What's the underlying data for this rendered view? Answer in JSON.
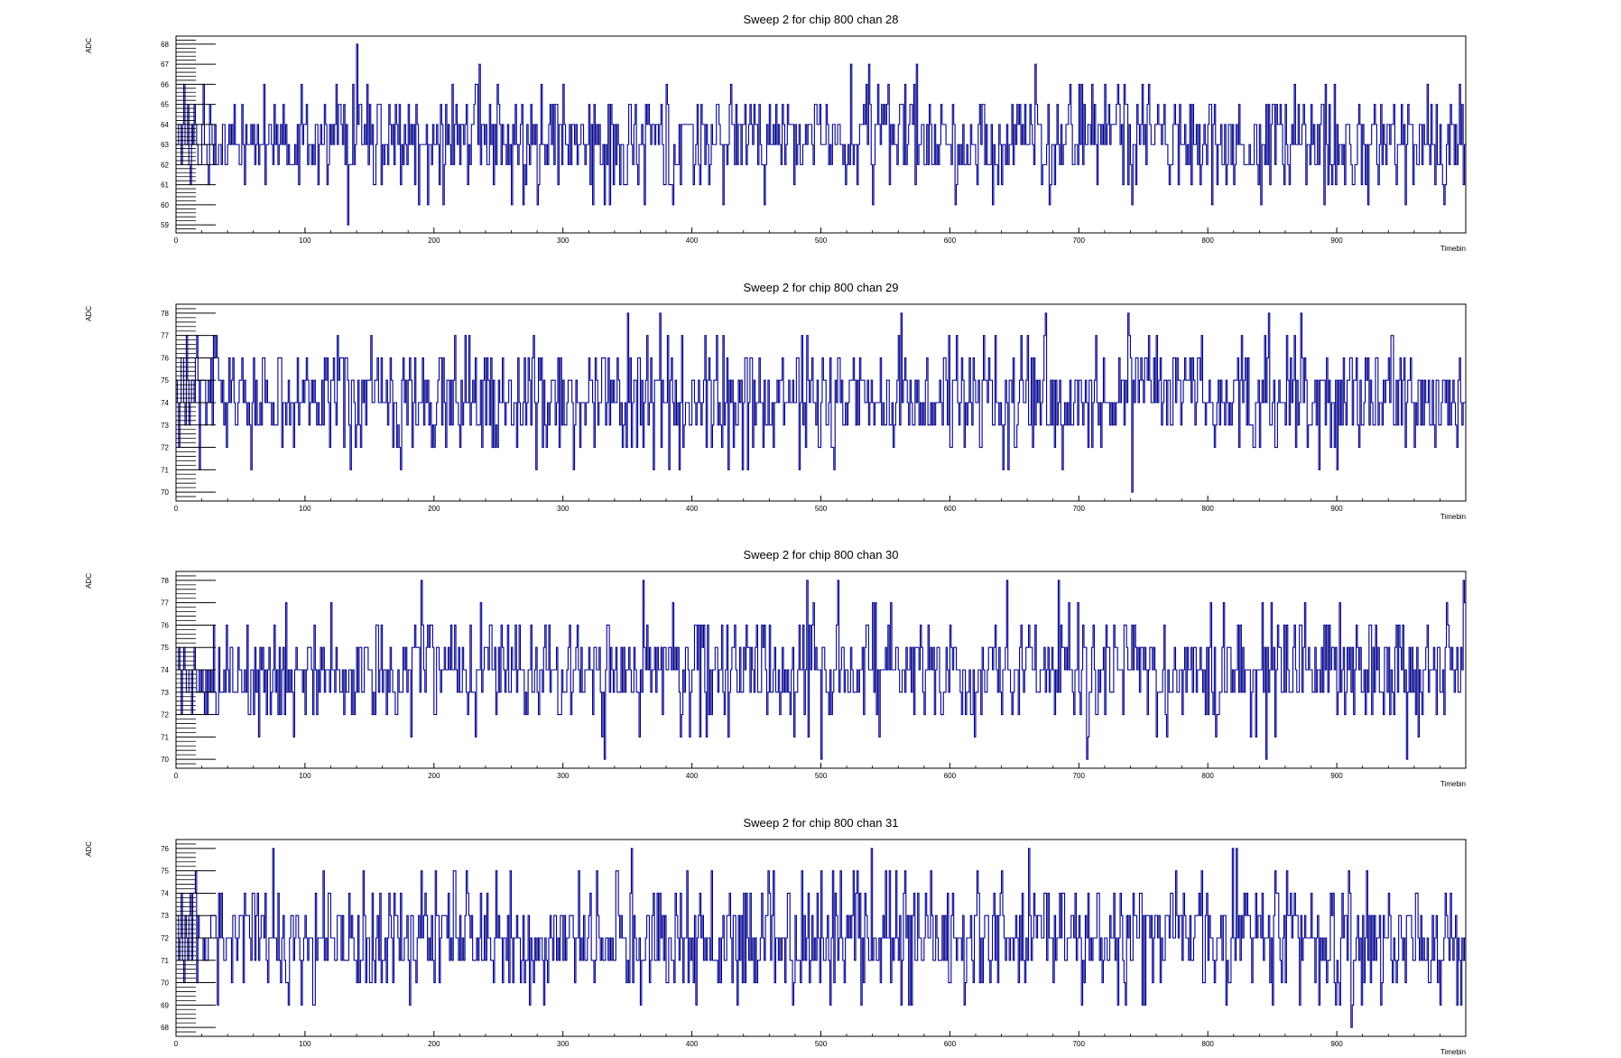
{
  "chart_data": [
    {
      "type": "line",
      "title": "Sweep 2 for chip 800 chan 28",
      "xlabel": "Timebin",
      "ylabel": "ADC",
      "xlim": [
        0,
        1000
      ],
      "ylim": [
        58.6,
        68.4
      ],
      "xticks": [
        0,
        100,
        200,
        300,
        400,
        500,
        600,
        700,
        800,
        900
      ],
      "yticks": [
        59,
        60,
        61,
        62,
        63,
        64,
        65,
        66,
        67,
        68
      ],
      "baseline": 63.2,
      "spread": 1.35,
      "ymin_data": 59,
      "ymax_data": 68,
      "seed": 28,
      "series": [
        {
          "color": "#00008b",
          "points": [
            [
              1,
              63
            ],
            [
              3,
              64
            ],
            [
              5,
              62
            ],
            [
              7,
              66
            ],
            [
              9,
              63
            ],
            [
              11,
              62
            ],
            [
              13,
              64
            ],
            [
              15,
              65
            ],
            [
              17,
              63
            ],
            [
              19,
              62
            ],
            [
              21,
              64
            ],
            [
              23,
              63
            ],
            [
              25,
              62
            ],
            [
              27,
              65
            ],
            [
              29,
              63
            ],
            [
              31,
              64
            ],
            [
              33,
              62
            ],
            [
              35,
              63
            ],
            [
              37,
              64
            ],
            [
              39,
              62
            ],
            [
              41,
              63
            ],
            [
              134,
              59
            ],
            [
              141,
              68
            ],
            [
              236,
              67
            ],
            [
              333,
              60
            ],
            [
              457,
              60
            ],
            [
              524,
              67
            ],
            [
              575,
              67
            ],
            [
              742,
              60
            ],
            [
              1000,
              63
            ]
          ]
        }
      ]
    },
    {
      "type": "line",
      "title": "Sweep 2 for chip 800 chan 29",
      "xlabel": "Timebin",
      "ylabel": "ADC",
      "xlim": [
        0,
        1000
      ],
      "ylim": [
        69.6,
        78.4
      ],
      "xticks": [
        0,
        100,
        200,
        300,
        400,
        500,
        600,
        700,
        800,
        900
      ],
      "yticks": [
        70,
        71,
        72,
        73,
        74,
        75,
        76,
        77,
        78
      ],
      "baseline": 74.3,
      "spread": 1.3,
      "ymin_data": 70,
      "ymax_data": 78,
      "seed": 29,
      "series": [
        {
          "color": "#00008b",
          "points": [
            [
              1,
              75
            ],
            [
              3,
              72
            ],
            [
              5,
              76
            ],
            [
              7,
              74
            ],
            [
              9,
              77
            ],
            [
              11,
              73
            ],
            [
              13,
              75
            ],
            [
              15,
              74
            ],
            [
              17,
              77
            ],
            [
              19,
              71
            ],
            [
              21,
              75
            ],
            [
              351,
              78
            ],
            [
              376,
              78
            ],
            [
              563,
              78
            ],
            [
              675,
              78
            ],
            [
              739,
              78
            ],
            [
              742,
              70
            ],
            [
              848,
              78
            ],
            [
              873,
              78
            ],
            [
              1000,
              74
            ]
          ]
        }
      ]
    },
    {
      "type": "line",
      "title": "Sweep 2 for chip 800 chan 30",
      "xlabel": "Timebin",
      "ylabel": "ADC",
      "xlim": [
        0,
        1000
      ],
      "ylim": [
        69.6,
        78.4
      ],
      "xticks": [
        0,
        100,
        200,
        300,
        400,
        500,
        600,
        700,
        800,
        900
      ],
      "yticks": [
        70,
        71,
        72,
        73,
        74,
        75,
        76,
        77,
        78
      ],
      "baseline": 74.0,
      "spread": 1.3,
      "ymin_data": 70,
      "ymax_data": 78,
      "seed": 30,
      "series": [
        {
          "color": "#00008b",
          "points": [
            [
              1,
              74
            ],
            [
              3,
              75
            ],
            [
              5,
              72
            ],
            [
              7,
              75
            ],
            [
              9,
              73
            ],
            [
              11,
              74
            ],
            [
              13,
              72
            ],
            [
              15,
              75
            ],
            [
              17,
              73
            ],
            [
              19,
              74
            ],
            [
              191,
              78
            ],
            [
              333,
              70
            ],
            [
              363,
              78
            ],
            [
              490,
              78
            ],
            [
              501,
              70
            ],
            [
              514,
              78
            ],
            [
              645,
              78
            ],
            [
              685,
              78
            ],
            [
              707,
              70
            ],
            [
              846,
              70
            ],
            [
              955,
              70
            ],
            [
              999,
              78
            ]
          ]
        }
      ]
    },
    {
      "type": "line",
      "title": "Sweep 2 for chip 800 chan 31",
      "xlabel": "Timebin",
      "ylabel": "ADC",
      "xlim": [
        0,
        1000
      ],
      "ylim": [
        67.6,
        76.4
      ],
      "xticks": [
        0,
        100,
        200,
        300,
        400,
        500,
        600,
        700,
        800,
        900
      ],
      "yticks": [
        68,
        69,
        70,
        71,
        72,
        73,
        74,
        75,
        76
      ],
      "baseline": 72.0,
      "spread": 1.35,
      "ymin_data": 68,
      "ymax_data": 76,
      "seed": 31,
      "series": [
        {
          "color": "#00008b",
          "points": [
            [
              1,
              73
            ],
            [
              3,
              71
            ],
            [
              5,
              74
            ],
            [
              7,
              70
            ],
            [
              9,
              72
            ],
            [
              11,
              73
            ],
            [
              13,
              71
            ],
            [
              15,
              74
            ],
            [
              17,
              70
            ],
            [
              19,
              72
            ],
            [
              76,
              76
            ],
            [
              354,
              76
            ],
            [
              540,
              76
            ],
            [
              662,
              76
            ],
            [
              820,
              76
            ],
            [
              823,
              76
            ],
            [
              912,
              68
            ],
            [
              997,
              69
            ]
          ]
        }
      ]
    }
  ]
}
